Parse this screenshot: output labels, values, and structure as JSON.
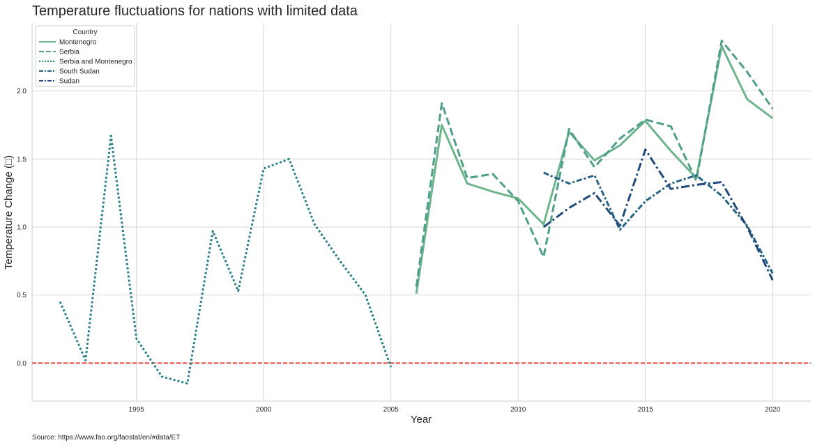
{
  "chart_data": {
    "type": "line",
    "title": "Temperature fluctuations for nations with limited data",
    "xlabel": "Year",
    "ylabel": "Temperature Change (□)",
    "source": "Source: https://www.fao.org/faostat/en/#data/ET",
    "xlim": [
      1990.9,
      2021.5
    ],
    "ylim": [
      -0.28,
      2.5
    ],
    "x_ticks": [
      1995,
      2000,
      2005,
      2010,
      2015,
      2020
    ],
    "y_ticks": [
      0.0,
      0.5,
      1.0,
      1.5,
      2.0
    ],
    "grid": true,
    "reference_line": {
      "y": 0.0,
      "color": "#e31a1c",
      "style": "dashed"
    },
    "legend": {
      "title": "Country",
      "placement": "top-left"
    },
    "series": [
      {
        "name": "Montenegro",
        "color": "#6db48c",
        "dash": "solid",
        "x": [
          2006,
          2007,
          2008,
          2009,
          2010,
          2011,
          2012,
          2013,
          2014,
          2015,
          2016,
          2017,
          2018,
          2019,
          2020
        ],
        "y": [
          0.51,
          1.75,
          1.32,
          1.26,
          1.21,
          1.02,
          1.7,
          1.49,
          1.6,
          1.78,
          1.56,
          1.36,
          2.33,
          1.94,
          1.8
        ]
      },
      {
        "name": "Serbia",
        "color": "#4e9e8b",
        "dash": "dashed",
        "x": [
          2006,
          2007,
          2008,
          2009,
          2010,
          2011,
          2012,
          2013,
          2014,
          2015,
          2016,
          2017,
          2018,
          2019,
          2020
        ],
        "y": [
          0.56,
          1.91,
          1.36,
          1.39,
          1.19,
          0.78,
          1.72,
          1.44,
          1.65,
          1.79,
          1.74,
          1.34,
          2.37,
          2.14,
          1.87
        ]
      },
      {
        "name": "Serbia and Montenegro",
        "color": "#2a7f86",
        "dash": "dotted",
        "x": [
          1992,
          1993,
          1994,
          1995,
          1996,
          1997,
          1998,
          1999,
          2000,
          2001,
          2002,
          2003,
          2004,
          2005
        ],
        "y": [
          0.45,
          0.02,
          1.67,
          0.18,
          -0.1,
          -0.15,
          0.97,
          0.53,
          1.43,
          1.5,
          1.02,
          0.75,
          0.5,
          -0.03
        ]
      },
      {
        "name": "South Sudan",
        "color": "#246482",
        "dash": "dashdot2",
        "x": [
          2011,
          2012,
          2013,
          2014,
          2015,
          2016,
          2017,
          2018,
          2019,
          2020
        ],
        "y": [
          1.4,
          1.32,
          1.38,
          0.98,
          1.19,
          1.32,
          1.38,
          1.23,
          1.01,
          0.66
        ]
      },
      {
        "name": "Sudan",
        "color": "#1f4a7a",
        "dash": "dashdot",
        "x": [
          2011,
          2012,
          2013,
          2014,
          2015,
          2016,
          2017,
          2018,
          2019,
          2020
        ],
        "y": [
          1.0,
          1.14,
          1.25,
          1.01,
          1.57,
          1.28,
          1.31,
          1.33,
          1.0,
          0.61
        ]
      }
    ]
  }
}
